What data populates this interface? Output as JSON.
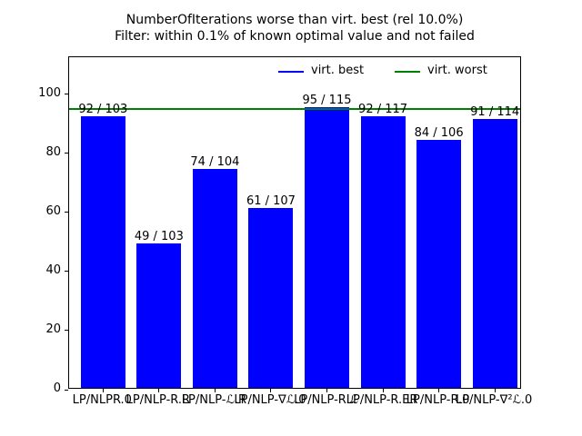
{
  "title": {
    "line1": "NumberOfIterations worse than virt. best (rel 10.0%)",
    "line2": "Filter: within 0.1% of known optimal value and not failed"
  },
  "legend": {
    "items": [
      {
        "label": "virt. best",
        "color": "#0000ff"
      },
      {
        "label": "virt. worst",
        "color": "#008000"
      }
    ]
  },
  "chart_data": {
    "type": "bar",
    "title": "NumberOfIterations worse than virt. best (rel 10.0%)",
    "subtitle": "Filter: within 0.1% of known optimal value and not failed",
    "categories": [
      "LP/NLPR.0",
      "LP/NLP-R.R",
      "LP/NLP-ℒ.R",
      "LP/NLP-∇ℒ.0",
      "LP/NLP-R.ℒ",
      "LP/NLP-R.ER",
      "LP/NLP-R.0",
      "LP/NLP-∇²ℒ.0"
    ],
    "values": [
      92,
      49,
      74,
      61,
      95,
      92,
      84,
      91
    ],
    "bar_labels": [
      "92 / 103",
      "49 / 103",
      "74 / 104",
      "61 / 107",
      "95 / 115",
      "92 / 117",
      "84 / 106",
      "91 / 114"
    ],
    "bar_color": "#0000ff",
    "reference_line": {
      "name": "virt. worst",
      "value": 95,
      "color": "#008000"
    },
    "yticks": [
      0,
      20,
      40,
      60,
      80,
      100
    ],
    "ylim": [
      0,
      112.6
    ],
    "grid": false,
    "legend_position": "upper right",
    "xlabel": "",
    "ylabel": ""
  }
}
